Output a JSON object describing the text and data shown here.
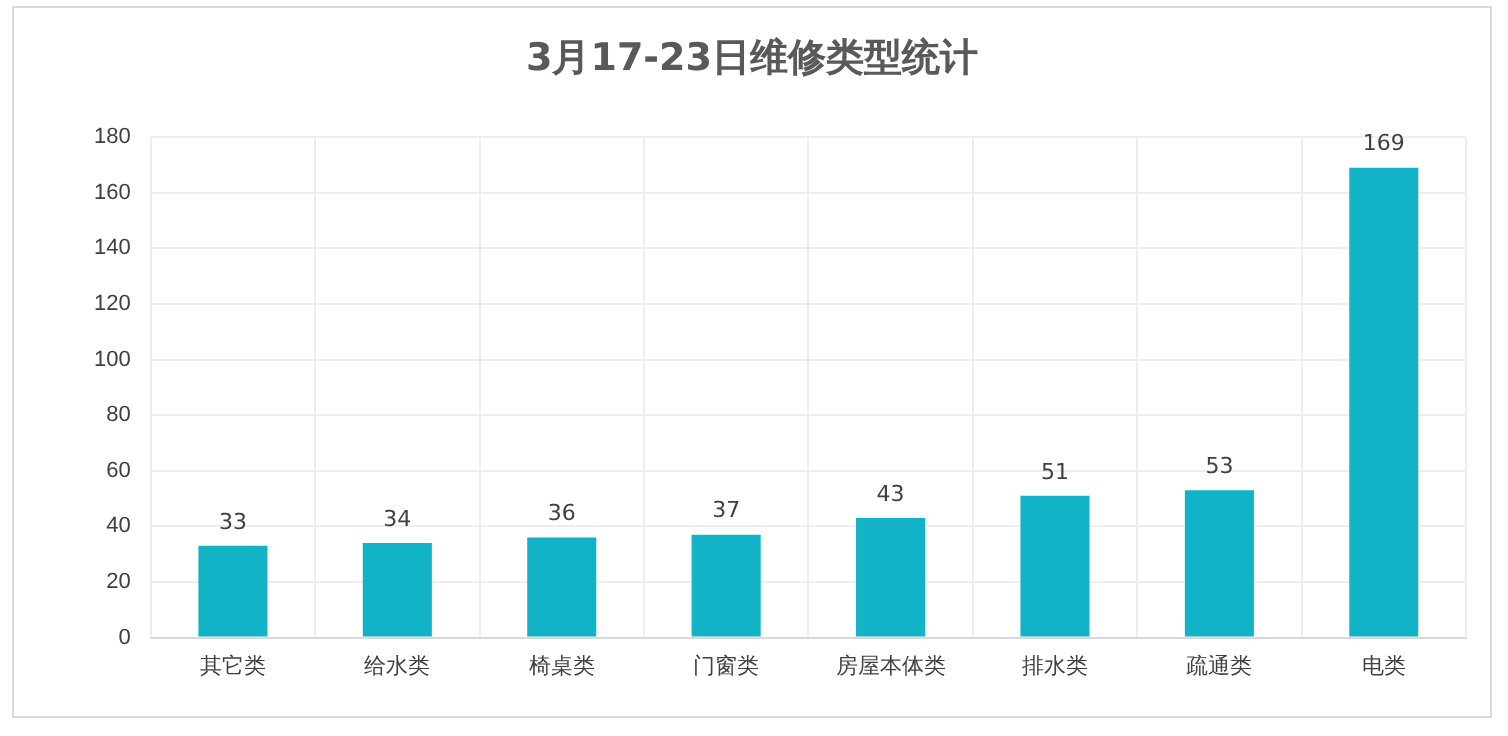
{
  "chart_data": {
    "type": "bar",
    "title": "3月17-23日维修类型统计",
    "categories": [
      "其它类",
      "给水类",
      "椅桌类",
      "门窗类",
      "房屋本体类",
      "排水类",
      "疏通类",
      "电类"
    ],
    "values": [
      33,
      34,
      36,
      37,
      43,
      51,
      53,
      169
    ],
    "color": "#12b3c6",
    "ylim": [
      0,
      180
    ],
    "yticks": [
      0,
      20,
      40,
      60,
      80,
      100,
      120,
      140,
      160,
      180
    ],
    "grid": true,
    "data_labels": true
  }
}
